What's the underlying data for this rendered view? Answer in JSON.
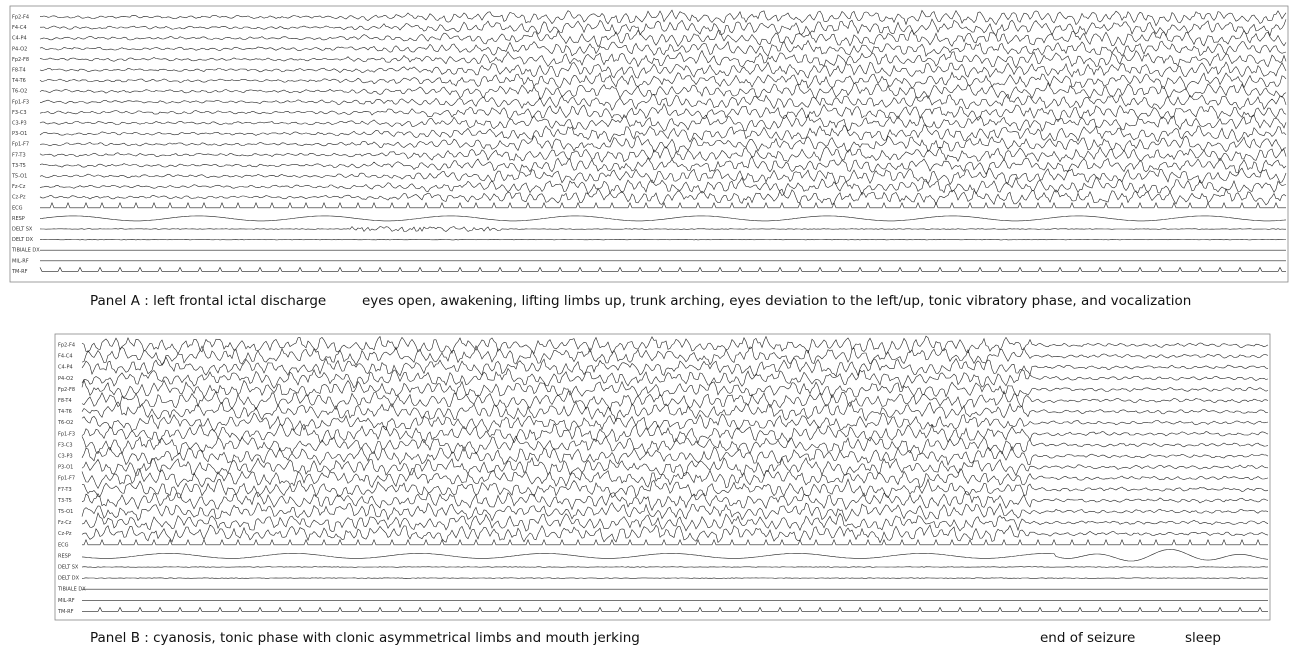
{
  "panels": [
    {
      "channels": [
        "Fp2-F4",
        "F4-C4",
        "C4-P4",
        "P4-O2",
        "Fp2-F8",
        "F8-T4",
        "T4-T6",
        "T6-O2",
        "Fp1-F3",
        "F3-C3",
        "C3-P3",
        "P3-O1",
        "Fp1-F7",
        "F7-T3",
        "T3-T5",
        "T5-O1",
        "Fz-Cz",
        "Cz-Pz",
        "ECG",
        "RESP",
        "DELT SX",
        "DELT DX",
        "TIBIALE DX",
        "MIL-RF",
        "TM-RF"
      ],
      "caption": "Panel A : left frontal ictal discharge",
      "caption_detail": "eyes open, awakening, lifting limbs up, trunk arching, eyes deviation to the left/up, tonic vibratory phase, and vocalization"
    },
    {
      "channels": [
        "Fp2-F4",
        "F4-C4",
        "C4-P4",
        "P4-O2",
        "Fp2-F8",
        "F8-T4",
        "T4-T6",
        "T6-O2",
        "Fp1-F3",
        "F3-C3",
        "C3-P3",
        "P3-O1",
        "Fp1-F7",
        "F7-T3",
        "T3-T5",
        "T5-O1",
        "Fz-Cz",
        "Cz-Pz",
        "ECG",
        "RESP",
        "DELT SX",
        "DELT DX",
        "TIBIALE DX",
        "MIL-RF",
        "TM-RF"
      ],
      "caption": "Panel B : cyanosis, tonic phase with clonic asymmetrical limbs and mouth jerking",
      "annotations": [
        "end of seizure",
        "sleep"
      ]
    }
  ]
}
